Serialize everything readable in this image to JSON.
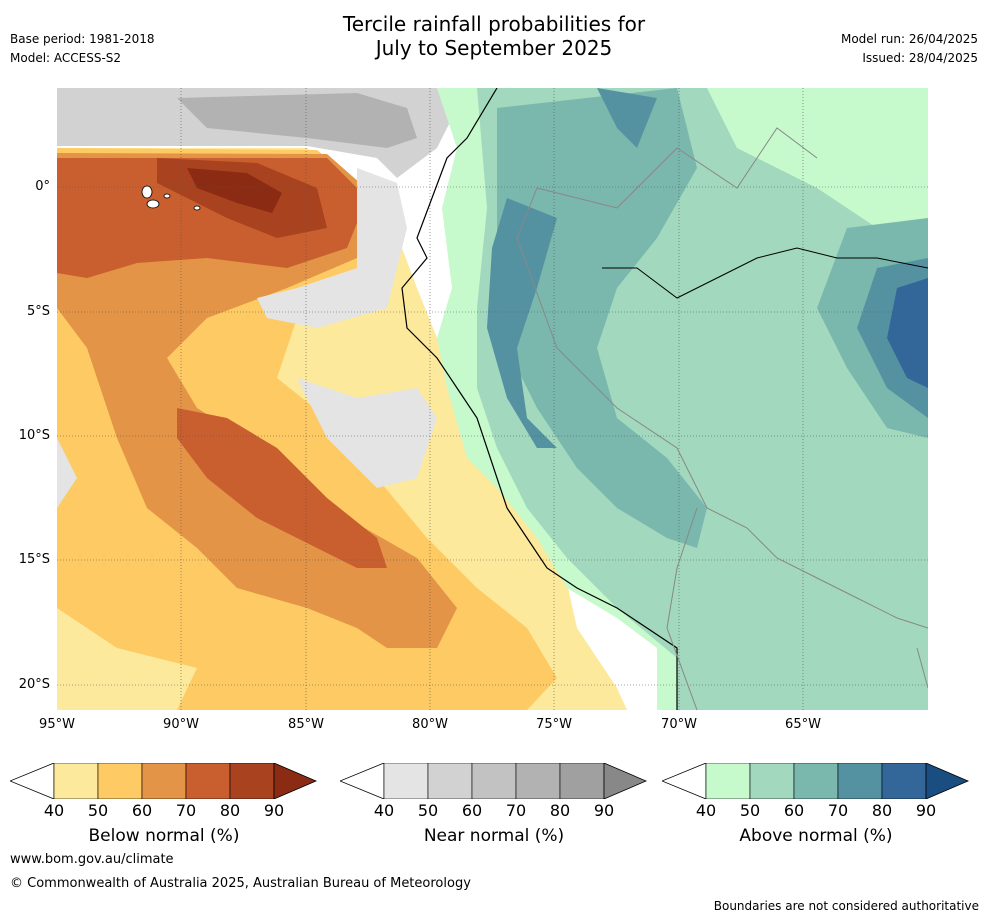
{
  "header": {
    "title_line1": "Tercile rainfall probabilities for",
    "title_line2": "July to September 2025",
    "base_period": "Base period: 1981-2018",
    "model": "Model: ACCESS-S2",
    "model_run": "Model run: 26/04/2025",
    "issued": "Issued: 28/04/2025"
  },
  "map": {
    "x_ticks": [
      "95°W",
      "90°W",
      "85°W",
      "80°W",
      "75°W",
      "70°W",
      "65°W"
    ],
    "y_ticks": [
      "0°",
      "5°S",
      "10°S",
      "15°S",
      "20°S"
    ],
    "colors": {
      "below": [
        "#fde99b",
        "#fdca64",
        "#e39446",
        "#c95f2f",
        "#a9431f",
        "#8b2b14"
      ],
      "near": [
        "#e4e4e4",
        "#d2d2d2",
        "#c2c2c2",
        "#b2b2b2",
        "#a0a0a0",
        "#888888"
      ],
      "above": [
        "#c6f9cc",
        "#a2d8bd",
        "#7ab8ad",
        "#5592a1",
        "#336799",
        "#1a4d80"
      ],
      "coast": "#000000",
      "border": "#888888"
    }
  },
  "colorbars": [
    {
      "label": "Below normal (%)",
      "ticks": [
        "40",
        "50",
        "60",
        "70",
        "80",
        "90"
      ],
      "colors": [
        "#fde99b",
        "#fdca64",
        "#e39446",
        "#c95f2f",
        "#a9431f"
      ],
      "extend_color": "#8b2b14"
    },
    {
      "label": "Near normal (%)",
      "ticks": [
        "40",
        "50",
        "60",
        "70",
        "80",
        "90"
      ],
      "colors": [
        "#e4e4e4",
        "#d2d2d2",
        "#c2c2c2",
        "#b2b2b2",
        "#a0a0a0"
      ],
      "extend_color": "#888888"
    },
    {
      "label": "Above normal (%)",
      "ticks": [
        "40",
        "50",
        "60",
        "70",
        "80",
        "90"
      ],
      "colors": [
        "#c6f9cc",
        "#a2d8bd",
        "#7ab8ad",
        "#5592a1",
        "#336799"
      ],
      "extend_color": "#1a4d80"
    }
  ],
  "footer": {
    "url": "www.bom.gov.au/climate",
    "copyright": "© Commonwealth of Australia 2025, Australian Bureau of Meteorology",
    "note": "Boundaries are not considered authoritative"
  }
}
